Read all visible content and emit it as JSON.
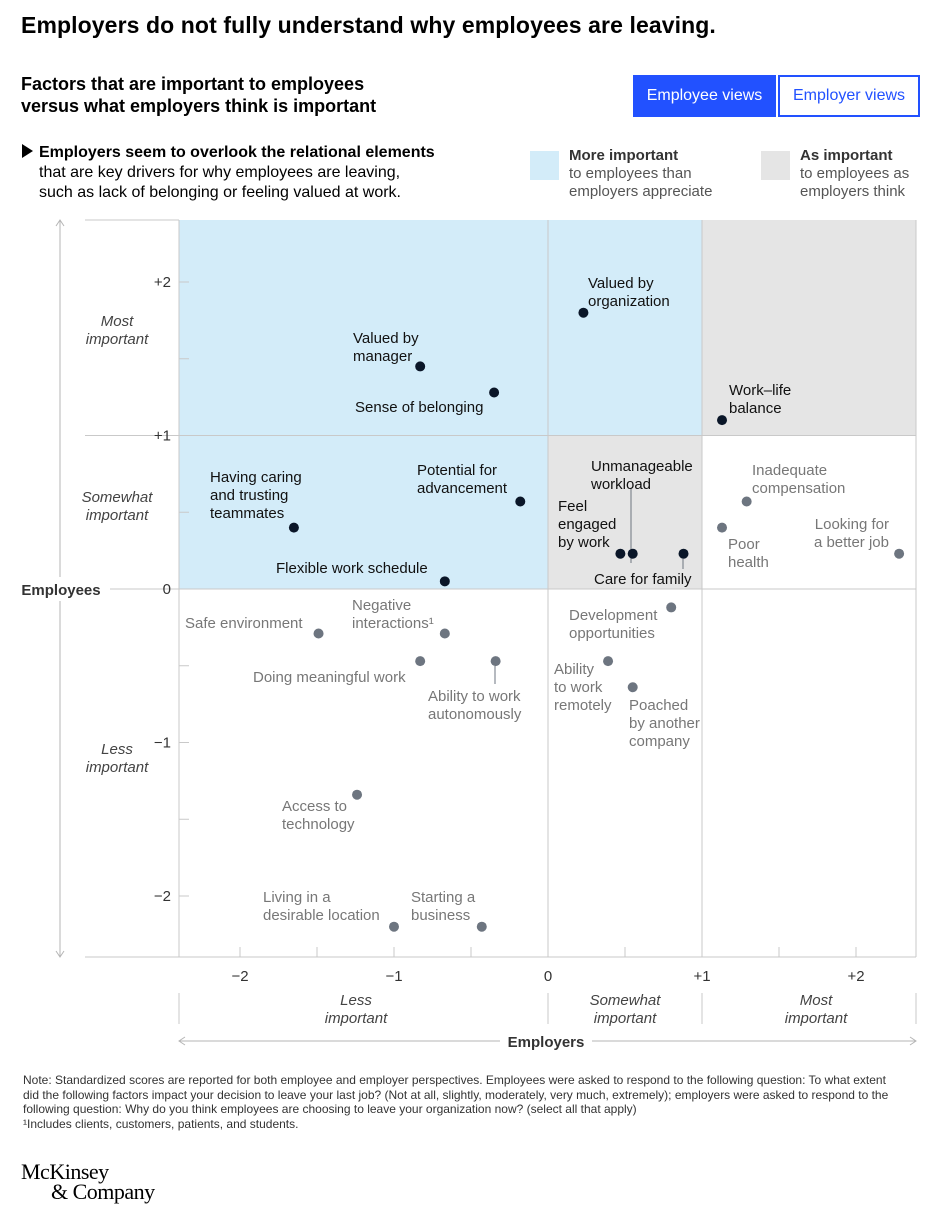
{
  "headline": "Employers do not fully understand why employees are leaving.",
  "subtitle": [
    "Factors that are important to employees",
    "versus what employers think is important"
  ],
  "toggle": {
    "employee_label": "Employee views",
    "employer_label": "Employer views",
    "active": "Employee views",
    "active_color": "#2251ff"
  },
  "callout": {
    "bold": "Employers seem to overlook the relational elements",
    "lines": [
      "that are key drivers for why employees are leaving,",
      "such as lack of belonging or feeling valued at work."
    ]
  },
  "legend": [
    {
      "title": "More important",
      "lines": [
        "to employees than",
        "employers appreciate"
      ],
      "color": "#d3ecf9"
    },
    {
      "title": "As important",
      "lines": [
        "to employees as",
        "employers think"
      ],
      "color": "#e5e5e5"
    }
  ],
  "chart_data": {
    "type": "scatter",
    "xlabel": "Employers",
    "ylabel": "Employees",
    "xlim": [
      -2.4,
      2.4
    ],
    "ylim": [
      -2.4,
      2.4
    ],
    "x_ticks": [
      "−2",
      "−1",
      "0",
      "+1",
      "+2"
    ],
    "y_ticks": [
      "+2",
      "+1",
      "0",
      "−1",
      "−2"
    ],
    "x_bands": [
      [
        "Less",
        "important"
      ],
      [
        "Somewhat",
        "important"
      ],
      [
        "Most",
        "important"
      ]
    ],
    "y_bands": [
      [
        "Most",
        "important"
      ],
      [
        "Somewhat",
        "important"
      ],
      [
        "Less",
        "important"
      ]
    ],
    "shaded_regions": [
      {
        "region": "more important to employees",
        "color": "#d3ecf9"
      },
      {
        "region": "as important",
        "color": "#e5e5e5"
      }
    ],
    "point_colors": {
      "highlighted": "#0a1628",
      "other": "#6d7580"
    },
    "points": [
      {
        "label": [
          "Valued by",
          "organization"
        ],
        "x": 0.23,
        "y": 1.8,
        "highlight": true
      },
      {
        "label": [
          "Valued by",
          "manager"
        ],
        "x": -0.83,
        "y": 1.45,
        "highlight": true
      },
      {
        "label": [
          "Sense of belonging"
        ],
        "x": -0.35,
        "y": 1.28,
        "highlight": true
      },
      {
        "label": [
          "Work–life",
          "balance"
        ],
        "x": 1.13,
        "y": 1.1,
        "highlight": true
      },
      {
        "label": [
          "Having caring",
          "and trusting",
          "teammates"
        ],
        "x": -1.65,
        "y": 0.4,
        "highlight": true
      },
      {
        "label": [
          "Potential for",
          "advancement"
        ],
        "x": -0.18,
        "y": 0.57,
        "highlight": true
      },
      {
        "label": [
          "Flexible work schedule"
        ],
        "x": -0.67,
        "y": 0.05,
        "highlight": true
      },
      {
        "label": [
          "Feel",
          "engaged",
          "by work"
        ],
        "x": 0.47,
        "y": 0.23,
        "highlight": true
      },
      {
        "label": [
          "Unmanageable",
          "workload"
        ],
        "x": 0.55,
        "y": 0.23,
        "highlight": true
      },
      {
        "label": [
          "Care for family"
        ],
        "x": 0.88,
        "y": 0.23,
        "highlight": true
      },
      {
        "label": [
          "Inadequate",
          "compensation"
        ],
        "x": 1.29,
        "y": 0.57,
        "highlight": false
      },
      {
        "label": [
          "Poor",
          "health"
        ],
        "x": 1.13,
        "y": 0.4,
        "highlight": false
      },
      {
        "label": [
          "Looking for",
          "a better job"
        ],
        "x": 2.28,
        "y": 0.23,
        "highlight": false
      },
      {
        "label": [
          "Safe environment"
        ],
        "x": -1.49,
        "y": -0.29,
        "highlight": false
      },
      {
        "label": [
          "Negative",
          "interactions¹"
        ],
        "x": -0.67,
        "y": -0.29,
        "highlight": false
      },
      {
        "label": [
          "Development",
          "opportunities"
        ],
        "x": 0.8,
        "y": -0.12,
        "highlight": false
      },
      {
        "label": [
          "Doing meaningful work"
        ],
        "x": -0.83,
        "y": -0.47,
        "highlight": false
      },
      {
        "label": [
          "Ability to work",
          "autonomously"
        ],
        "x": -0.34,
        "y": -0.47,
        "highlight": false
      },
      {
        "label": [
          "Ability",
          "to work",
          "remotely"
        ],
        "x": 0.39,
        "y": -0.47,
        "highlight": false
      },
      {
        "label": [
          "Poached",
          "by another",
          "company"
        ],
        "x": 0.55,
        "y": -0.64,
        "highlight": false
      },
      {
        "label": [
          "Access to",
          "technology"
        ],
        "x": -1.24,
        "y": -1.34,
        "highlight": false
      },
      {
        "label": [
          "Living in a",
          "desirable location"
        ],
        "x": -1.0,
        "y": -2.2,
        "highlight": false
      },
      {
        "label": [
          "Starting a",
          "business"
        ],
        "x": -0.43,
        "y": -2.2,
        "highlight": false
      }
    ]
  },
  "note": [
    "Note: Standardized scores are reported for both employee and employer perspectives. Employees were asked to respond to the following question: To what extent did the following factors impact your decision to leave your last job? (Not at all, slightly, moderately, very much, extremely); employers were asked to respond to the following question: Why do you think employees are choosing to leave your organization now? (select all that apply)",
    "¹Includes clients, customers, patients, and students."
  ],
  "logo": [
    "McKinsey",
    "& Company"
  ]
}
